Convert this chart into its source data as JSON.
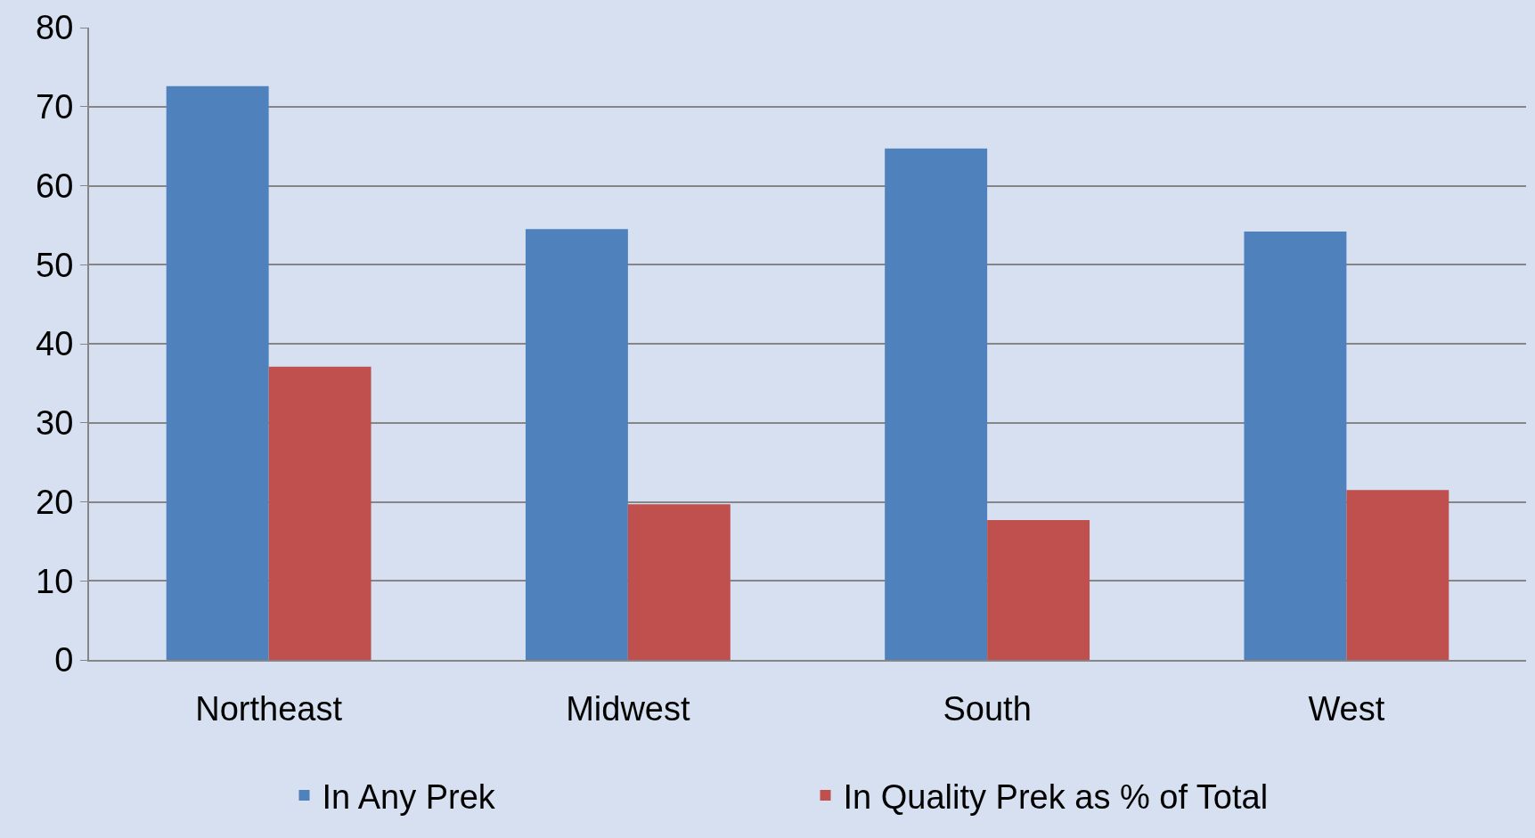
{
  "chart_data": {
    "type": "bar",
    "categories": [
      "Northeast",
      "Midwest",
      "South",
      "West"
    ],
    "series": [
      {
        "name": "In Any Prek",
        "color": "#4f81bd",
        "values": [
          72.6,
          54.5,
          64.7,
          54.2
        ]
      },
      {
        "name": "In Quality Prek as % of Total",
        "color": "#c0504d",
        "values": [
          37.1,
          19.7,
          17.7,
          21.5
        ]
      }
    ],
    "ylim": [
      0,
      80
    ],
    "yticks": [
      0,
      10,
      20,
      30,
      40,
      50,
      60,
      70,
      80
    ],
    "grid": "y",
    "legend": "bottom"
  }
}
